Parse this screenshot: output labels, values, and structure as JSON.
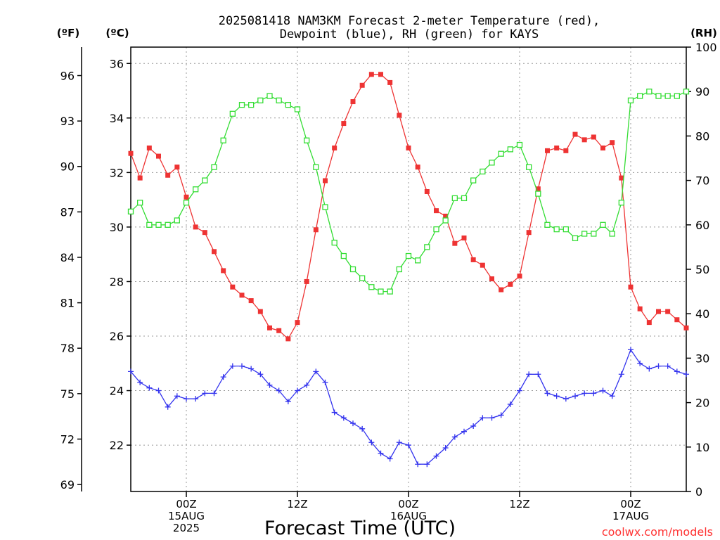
{
  "chart_data": {
    "type": "line",
    "title_line1": "2025081418 NAM3KM Forecast 2-meter Temperature (red),",
    "title_line2": "Dewpoint (blue), RH (green) for KAYS",
    "xlabel": "Forecast Time (UTC)",
    "credit": "coolwx.com/models",
    "axes": {
      "left_f": {
        "unit_label": "(ºF)",
        "ticks": [
          69,
          72,
          75,
          78,
          81,
          84,
          87,
          90,
          93,
          96
        ]
      },
      "left_c": {
        "unit_label": "(ºC)",
        "ylim": [
          20.3,
          36.6
        ],
        "ticks": [
          22,
          24,
          26,
          28,
          30,
          32,
          34,
          36
        ]
      },
      "right_rh": {
        "unit_label": "(RH)",
        "ylim": [
          0,
          100
        ],
        "ticks": [
          0,
          10,
          20,
          30,
          40,
          50,
          60,
          70,
          80,
          90,
          100
        ]
      }
    },
    "x_ticks": [
      {
        "hour": 6,
        "lines": [
          "00Z",
          "15AUG",
          "2025"
        ]
      },
      {
        "hour": 18,
        "lines": [
          "12Z"
        ]
      },
      {
        "hour": 30,
        "lines": [
          "00Z",
          "16AUG"
        ]
      },
      {
        "hour": 42,
        "lines": [
          "12Z"
        ]
      },
      {
        "hour": 54,
        "lines": [
          "00Z",
          "17AUG"
        ]
      }
    ],
    "x_range_hours": [
      0,
      60
    ],
    "grid": true,
    "series": [
      {
        "name": "Temperature",
        "color": "#ee3333",
        "marker": "filled-square",
        "axis": "left_c",
        "values": [
          32.7,
          31.8,
          32.9,
          32.6,
          31.9,
          32.2,
          31.1,
          30.0,
          29.8,
          29.1,
          28.4,
          27.8,
          27.5,
          27.3,
          26.9,
          26.3,
          26.2,
          25.9,
          26.5,
          28.0,
          29.9,
          31.7,
          32.9,
          33.8,
          34.6,
          35.2,
          35.6,
          35.6,
          35.3,
          34.1,
          32.9,
          32.2,
          31.3,
          30.6,
          30.4,
          29.4,
          29.6,
          28.8,
          28.6,
          28.1,
          27.7,
          27.9,
          28.2,
          29.8,
          31.4,
          32.8,
          32.9,
          32.8,
          33.4,
          33.2,
          33.3,
          32.9,
          33.1,
          31.8,
          27.8,
          27.0,
          26.5,
          26.9,
          26.9,
          26.6,
          26.3
        ]
      },
      {
        "name": "Dewpoint",
        "color": "#3333ee",
        "marker": "plus",
        "axis": "left_c",
        "values": [
          24.7,
          24.3,
          24.1,
          24.0,
          23.4,
          23.8,
          23.7,
          23.7,
          23.9,
          23.9,
          24.5,
          24.9,
          24.9,
          24.8,
          24.6,
          24.2,
          24.0,
          23.6,
          24.0,
          24.2,
          24.7,
          24.3,
          23.2,
          23.0,
          22.8,
          22.6,
          22.1,
          21.7,
          21.5,
          22.1,
          22.0,
          21.3,
          21.3,
          21.6,
          21.9,
          22.3,
          22.5,
          22.7,
          23.0,
          23.0,
          23.1,
          23.5,
          24.0,
          24.6,
          24.6,
          23.9,
          23.8,
          23.7,
          23.8,
          23.9,
          23.9,
          24.0,
          23.8,
          24.6,
          25.5,
          25.0,
          24.8,
          24.9,
          24.9,
          24.7,
          24.6
        ]
      },
      {
        "name": "RH",
        "color": "#33dd33",
        "marker": "open-square",
        "axis": "right_rh",
        "values": [
          63,
          65,
          60,
          60,
          60,
          61,
          65,
          68,
          70,
          73,
          79,
          85,
          87,
          87,
          88,
          89,
          88,
          87,
          86,
          79,
          73,
          64,
          56,
          53,
          50,
          48,
          46,
          45,
          45,
          50,
          53,
          52,
          55,
          59,
          61,
          66,
          66,
          70,
          72,
          74,
          76,
          77,
          78,
          73,
          67,
          60,
          59,
          59,
          57,
          58,
          58,
          60,
          58,
          65,
          88,
          89,
          90,
          89,
          89,
          89,
          90
        ]
      }
    ]
  }
}
